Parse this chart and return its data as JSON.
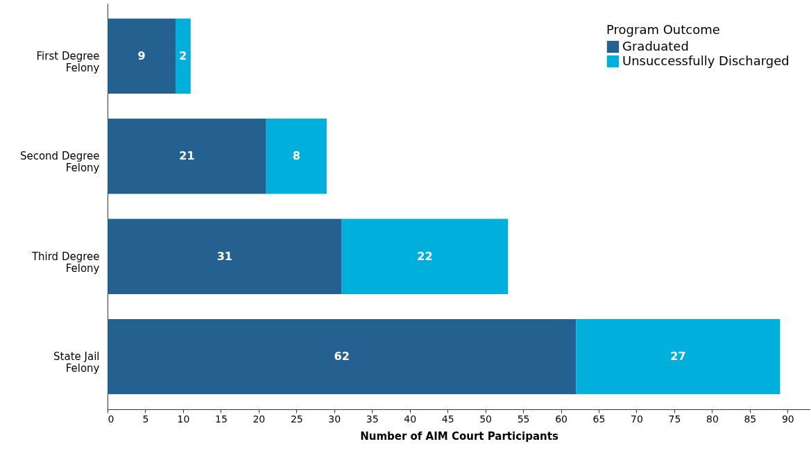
{
  "chart_data": {
    "type": "bar",
    "orientation": "horizontal",
    "stacked": true,
    "categories": [
      "First Degree Felony",
      "Second Degree Felony",
      "Third Degree Felony",
      "State Jail Felony"
    ],
    "series": [
      {
        "name": "Graduated",
        "color": "#246190",
        "values": [
          9,
          21,
          31,
          62
        ]
      },
      {
        "name": "Unsuccessfully Discharged",
        "color": "#00afdb",
        "values": [
          2,
          8,
          22,
          27
        ]
      }
    ],
    "xlabel": "Number of AIM Court Participants",
    "legend_title": "Program Outcome",
    "legend": "top right",
    "xlim": [
      0,
      93
    ],
    "xticks": [
      0,
      5,
      10,
      15,
      20,
      25,
      30,
      35,
      40,
      45,
      50,
      55,
      60,
      65,
      70,
      75,
      80,
      85,
      90
    ],
    "grid": false,
    "data_labels": true
  }
}
